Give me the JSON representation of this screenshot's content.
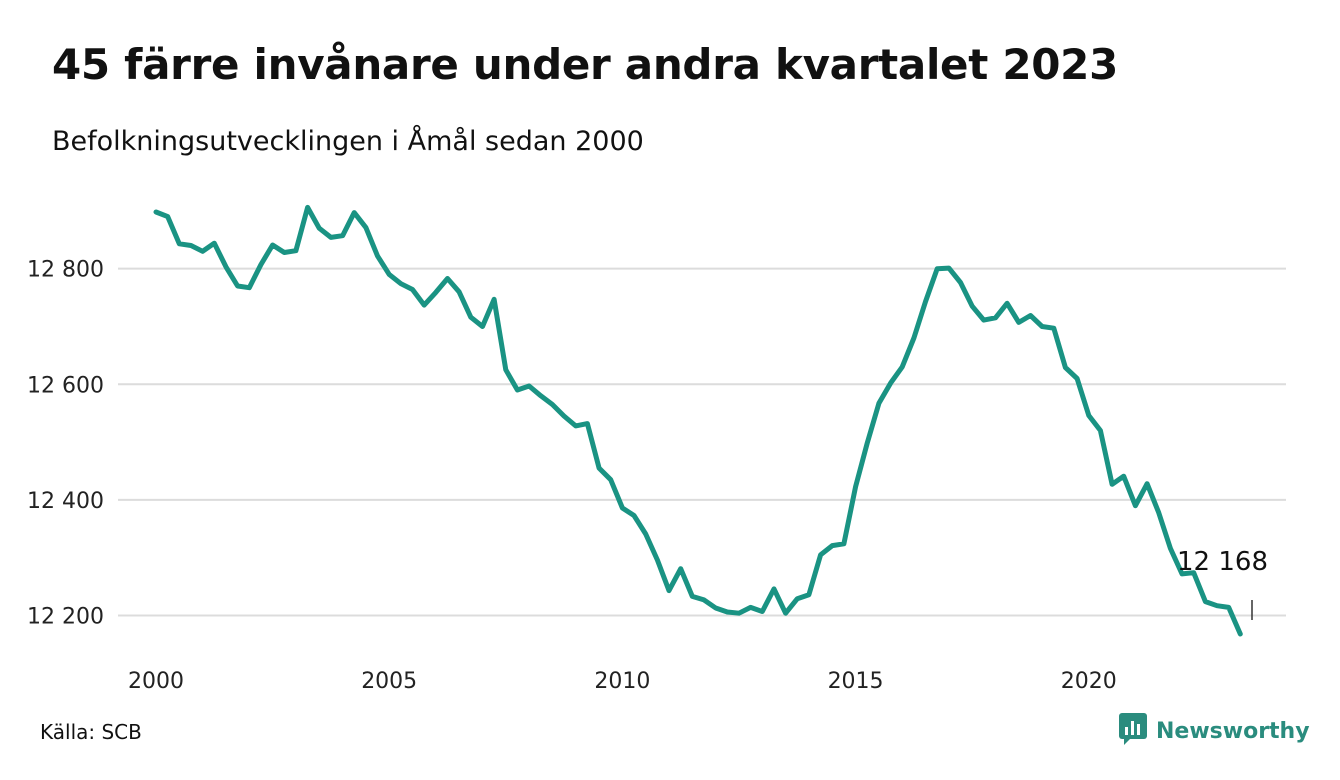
{
  "title": "45 färre invånare under andra kvartalet 2023",
  "subtitle": "Befolkningsutvecklingen i Åmål sedan 2000",
  "source": "Källa: SCB",
  "brand": {
    "name": "Newsworthy",
    "icon": "newsworthy-logo-icon",
    "color": "#2a8c7e"
  },
  "chart_data": {
    "type": "line",
    "title": "45 färre invånare under andra kvartalet 2023",
    "subtitle": "Befolkningsutvecklingen i Åmål sedan 2000",
    "xlabel": "",
    "ylabel": "",
    "xlim": [
      2000,
      2023.6
    ],
    "ylim": [
      12168,
      12910
    ],
    "xticks": [
      2000,
      2005,
      2010,
      2015,
      2020
    ],
    "xtick_labels": [
      "2000",
      "2005",
      "2010",
      "2015",
      "2020"
    ],
    "yticks": [
      12200,
      12400,
      12600,
      12800
    ],
    "ytick_labels": [
      "12 200",
      "12 400",
      "12 600",
      "12 800"
    ],
    "grid": "horizontal",
    "line_color": "#1a9383",
    "annotation": {
      "label": "12 168",
      "x": 2023.5,
      "y": 12168
    },
    "series": [
      {
        "values": [
          [
            2000.0,
            12898
          ],
          [
            2000.25,
            12890
          ],
          [
            2000.5,
            12843
          ],
          [
            2000.75,
            12840
          ],
          [
            2001.0,
            12830
          ],
          [
            2001.25,
            12844
          ],
          [
            2001.5,
            12803
          ],
          [
            2001.75,
            12770
          ],
          [
            2002.0,
            12767
          ],
          [
            2002.25,
            12807
          ],
          [
            2002.5,
            12841
          ],
          [
            2002.75,
            12828
          ],
          [
            2003.0,
            12831
          ],
          [
            2003.25,
            12906
          ],
          [
            2003.5,
            12870
          ],
          [
            2003.75,
            12854
          ],
          [
            2004.0,
            12857
          ],
          [
            2004.25,
            12897
          ],
          [
            2004.5,
            12871
          ],
          [
            2004.75,
            12822
          ],
          [
            2005.0,
            12790
          ],
          [
            2005.25,
            12774
          ],
          [
            2005.5,
            12764
          ],
          [
            2005.75,
            12737
          ],
          [
            2006.0,
            12759
          ],
          [
            2006.25,
            12783
          ],
          [
            2006.5,
            12760
          ],
          [
            2006.75,
            12716
          ],
          [
            2007.0,
            12700
          ],
          [
            2007.25,
            12747
          ],
          [
            2007.5,
            12625
          ],
          [
            2007.75,
            12590
          ],
          [
            2008.0,
            12597
          ],
          [
            2008.25,
            12580
          ],
          [
            2008.5,
            12565
          ],
          [
            2008.75,
            12545
          ],
          [
            2009.0,
            12528
          ],
          [
            2009.25,
            12532
          ],
          [
            2009.5,
            12455
          ],
          [
            2009.75,
            12435
          ],
          [
            2010.0,
            12386
          ],
          [
            2010.25,
            12373
          ],
          [
            2010.5,
            12341
          ],
          [
            2010.75,
            12296
          ],
          [
            2011.0,
            12243
          ],
          [
            2011.25,
            12281
          ],
          [
            2011.5,
            12233
          ],
          [
            2011.75,
            12227
          ],
          [
            2012.0,
            12213
          ],
          [
            2012.25,
            12206
          ],
          [
            2012.5,
            12204
          ],
          [
            2012.75,
            12214
          ],
          [
            2013.0,
            12207
          ],
          [
            2013.25,
            12246
          ],
          [
            2013.5,
            12204
          ],
          [
            2013.75,
            12229
          ],
          [
            2014.0,
            12236
          ],
          [
            2014.25,
            12305
          ],
          [
            2014.5,
            12321
          ],
          [
            2014.75,
            12324
          ],
          [
            2015.0,
            12423
          ],
          [
            2015.25,
            12498
          ],
          [
            2015.5,
            12567
          ],
          [
            2015.75,
            12602
          ],
          [
            2016.0,
            12630
          ],
          [
            2016.25,
            12680
          ],
          [
            2016.5,
            12743
          ],
          [
            2016.75,
            12800
          ],
          [
            2017.0,
            12801
          ],
          [
            2017.25,
            12776
          ],
          [
            2017.5,
            12735
          ],
          [
            2017.75,
            12711
          ],
          [
            2018.0,
            12715
          ],
          [
            2018.25,
            12740
          ],
          [
            2018.5,
            12707
          ],
          [
            2018.75,
            12719
          ],
          [
            2019.0,
            12700
          ],
          [
            2019.25,
            12697
          ],
          [
            2019.5,
            12629
          ],
          [
            2019.75,
            12610
          ],
          [
            2020.0,
            12546
          ],
          [
            2020.25,
            12520
          ],
          [
            2020.5,
            12427
          ],
          [
            2020.75,
            12441
          ],
          [
            2021.0,
            12390
          ],
          [
            2021.25,
            12428
          ],
          [
            2021.5,
            12378
          ],
          [
            2021.75,
            12316
          ],
          [
            2022.0,
            12272
          ],
          [
            2022.25,
            12274
          ],
          [
            2022.5,
            12224
          ],
          [
            2022.75,
            12217
          ],
          [
            2023.0,
            12214
          ],
          [
            2023.25,
            12168
          ]
        ]
      }
    ]
  }
}
